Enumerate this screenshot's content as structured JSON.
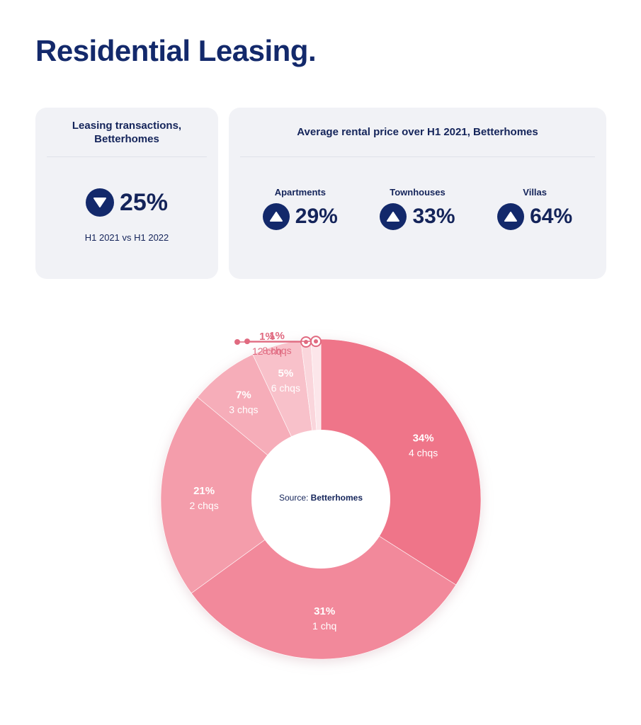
{
  "title": "Residential Leasing.",
  "card_left": {
    "title": "Leasing transactions, Betterhomes",
    "value": "25%",
    "direction": "down",
    "note": "H1 2021 vs H1 2022"
  },
  "card_right": {
    "title": "Average rental price over H1 2021, Betterhomes",
    "metrics": [
      {
        "label": "Apartments",
        "value": "29%",
        "direction": "up"
      },
      {
        "label": "Townhouses",
        "value": "33%",
        "direction": "up"
      },
      {
        "label": "Villas",
        "value": "64%",
        "direction": "up"
      }
    ]
  },
  "chart_data": {
    "type": "pie",
    "center_label_prefix": "Source: ",
    "center_label_source": "Betterhomes",
    "slices": [
      {
        "pct": "34%",
        "label": "4 chqs",
        "value": 34,
        "color": "#ef7589"
      },
      {
        "pct": "31%",
        "label": "1 chq",
        "value": 31,
        "color": "#f2899b"
      },
      {
        "pct": "21%",
        "label": "2 chqs",
        "value": 21,
        "color": "#f49dab"
      },
      {
        "pct": "7%",
        "label": "3 chqs",
        "value": 7,
        "color": "#f6adb9"
      },
      {
        "pct": "5%",
        "label": "6 chqs",
        "value": 5,
        "color": "#f8c1ca"
      },
      {
        "pct": "1%",
        "label": "12 chq",
        "value": 1,
        "color": "#fad6dc"
      },
      {
        "pct": "1%",
        "label": "8 chqs",
        "value": 1,
        "color": "#fce6ea"
      }
    ],
    "colors": {
      "annotation": "#e06a80",
      "navy": "#13296b"
    }
  }
}
